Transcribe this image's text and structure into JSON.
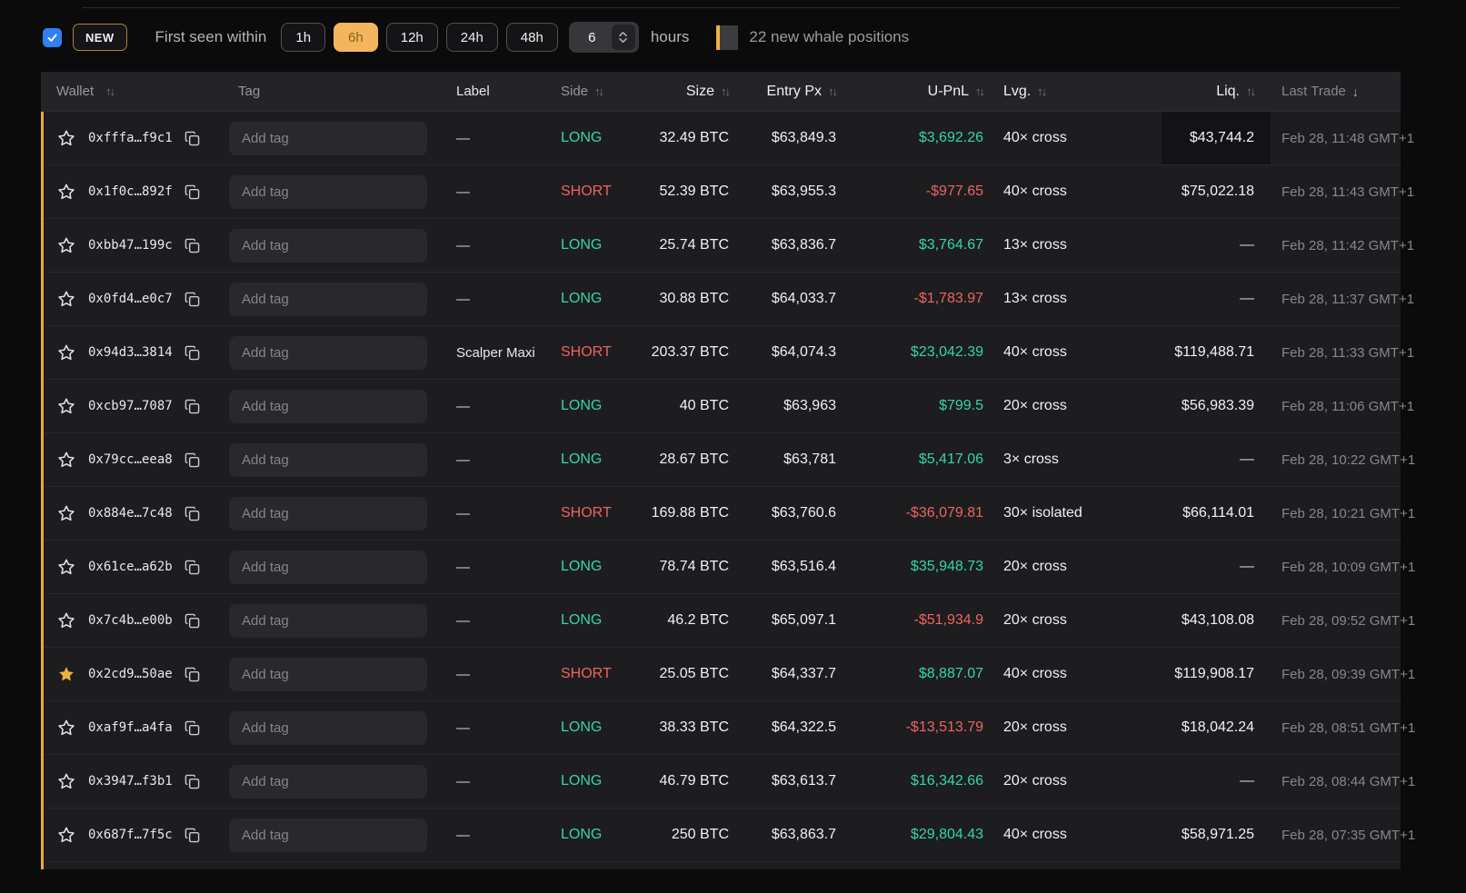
{
  "colors": {
    "accent_orange": "#f3b65c",
    "long_green": "#35d4aa",
    "short_red": "#ee6360",
    "star_yellow": "#f1af3f",
    "checkbox_blue": "#2f7ff5",
    "new_row_marker_orange": "#f0a63c"
  },
  "toolbar": {
    "checkbox_checked": true,
    "new_label": "NEW",
    "first_seen_label": "First seen within",
    "presets": [
      "1h",
      "6h",
      "12h",
      "24h",
      "48h"
    ],
    "active_preset": "6h",
    "custom_hours_value": "6",
    "hours_label": "hours",
    "legend_text": "22 new whale positions"
  },
  "table": {
    "tag_placeholder": "Add tag",
    "empty_value": "—",
    "columns": [
      {
        "key": "wallet",
        "label": "Wallet",
        "sort": "both"
      },
      {
        "key": "tag",
        "label": "Tag",
        "sort": "none"
      },
      {
        "key": "label",
        "label": "Label",
        "sort": "none"
      },
      {
        "key": "side",
        "label": "Side",
        "sort": "both"
      },
      {
        "key": "size",
        "label": "Size",
        "sort": "both"
      },
      {
        "key": "entry",
        "label": "Entry Px",
        "sort": "both"
      },
      {
        "key": "upnl",
        "label": "U-PnL",
        "sort": "both"
      },
      {
        "key": "lvg",
        "label": "Lvg.",
        "sort": "both"
      },
      {
        "key": "liq",
        "label": "Liq.",
        "sort": "both"
      },
      {
        "key": "last",
        "label": "Last Trade",
        "sort": "desc"
      }
    ],
    "rows": [
      {
        "wallet": "0xfffa…f9c1",
        "starred": false,
        "tag": "",
        "label": "—",
        "side": "LONG",
        "size": "32.49 BTC",
        "entry": "$63,849.3",
        "upnl": "$3,692.26",
        "lvg": "40× cross",
        "liq": "$43,744.2",
        "last": "Feb 28, 11:48 GMT+1",
        "liq_highlighted": true
      },
      {
        "wallet": "0x1f0c…892f",
        "starred": false,
        "tag": "",
        "label": "—",
        "side": "SHORT",
        "size": "52.39 BTC",
        "entry": "$63,955.3",
        "upnl": "-$977.65",
        "lvg": "40× cross",
        "liq": "$75,022.18",
        "last": "Feb 28, 11:43 GMT+1",
        "liq_highlighted": false
      },
      {
        "wallet": "0xbb47…199c",
        "starred": false,
        "tag": "",
        "label": "—",
        "side": "LONG",
        "size": "25.74 BTC",
        "entry": "$63,836.7",
        "upnl": "$3,764.67",
        "lvg": "13× cross",
        "liq": "—",
        "last": "Feb 28, 11:42 GMT+1",
        "liq_highlighted": false
      },
      {
        "wallet": "0x0fd4…e0c7",
        "starred": false,
        "tag": "",
        "label": "—",
        "side": "LONG",
        "size": "30.88 BTC",
        "entry": "$64,033.7",
        "upnl": "-$1,783.97",
        "lvg": "13× cross",
        "liq": "—",
        "last": "Feb 28, 11:37 GMT+1",
        "liq_highlighted": false
      },
      {
        "wallet": "0x94d3…3814",
        "starred": false,
        "tag": "",
        "label": "Scalper Maxi",
        "side": "SHORT",
        "size": "203.37 BTC",
        "entry": "$64,074.3",
        "upnl": "$23,042.39",
        "lvg": "40× cross",
        "liq": "$119,488.71",
        "last": "Feb 28, 11:33 GMT+1",
        "liq_highlighted": false
      },
      {
        "wallet": "0xcb97…7087",
        "starred": false,
        "tag": "",
        "label": "—",
        "side": "LONG",
        "size": "40 BTC",
        "entry": "$63,963",
        "upnl": "$799.5",
        "lvg": "20× cross",
        "liq": "$56,983.39",
        "last": "Feb 28, 11:06 GMT+1",
        "liq_highlighted": false
      },
      {
        "wallet": "0x79cc…eea8",
        "starred": false,
        "tag": "",
        "label": "—",
        "side": "LONG",
        "size": "28.67 BTC",
        "entry": "$63,781",
        "upnl": "$5,417.06",
        "lvg": "3× cross",
        "liq": "—",
        "last": "Feb 28, 10:22 GMT+1",
        "liq_highlighted": false
      },
      {
        "wallet": "0x884e…7c48",
        "starred": false,
        "tag": "",
        "label": "—",
        "side": "SHORT",
        "size": "169.88 BTC",
        "entry": "$63,760.6",
        "upnl": "-$36,079.81",
        "lvg": "30× isolated",
        "liq": "$66,114.01",
        "last": "Feb 28, 10:21 GMT+1",
        "liq_highlighted": false
      },
      {
        "wallet": "0x61ce…a62b",
        "starred": false,
        "tag": "",
        "label": "—",
        "side": "LONG",
        "size": "78.74 BTC",
        "entry": "$63,516.4",
        "upnl": "$35,948.73",
        "lvg": "20× cross",
        "liq": "—",
        "last": "Feb 28, 10:09 GMT+1",
        "liq_highlighted": false
      },
      {
        "wallet": "0x7c4b…e00b",
        "starred": false,
        "tag": "",
        "label": "—",
        "side": "LONG",
        "size": "46.2 BTC",
        "entry": "$65,097.1",
        "upnl": "-$51,934.9",
        "lvg": "20× cross",
        "liq": "$43,108.08",
        "last": "Feb 28, 09:52 GMT+1",
        "liq_highlighted": false
      },
      {
        "wallet": "0x2cd9…50ae",
        "starred": true,
        "tag": "",
        "label": "—",
        "side": "SHORT",
        "size": "25.05 BTC",
        "entry": "$64,337.7",
        "upnl": "$8,887.07",
        "lvg": "40× cross",
        "liq": "$119,908.17",
        "last": "Feb 28, 09:39 GMT+1",
        "liq_highlighted": false
      },
      {
        "wallet": "0xaf9f…a4fa",
        "starred": false,
        "tag": "",
        "label": "—",
        "side": "LONG",
        "size": "38.33 BTC",
        "entry": "$64,322.5",
        "upnl": "-$13,513.79",
        "lvg": "20× cross",
        "liq": "$18,042.24",
        "last": "Feb 28, 08:51 GMT+1",
        "liq_highlighted": false
      },
      {
        "wallet": "0x3947…f3b1",
        "starred": false,
        "tag": "",
        "label": "—",
        "side": "LONG",
        "size": "46.79 BTC",
        "entry": "$63,613.7",
        "upnl": "$16,342.66",
        "lvg": "20× cross",
        "liq": "—",
        "last": "Feb 28, 08:44 GMT+1",
        "liq_highlighted": false
      },
      {
        "wallet": "0x687f…7f5c",
        "starred": false,
        "tag": "",
        "label": "—",
        "side": "LONG",
        "size": "250 BTC",
        "entry": "$63,863.7",
        "upnl": "$29,804.43",
        "lvg": "40× cross",
        "liq": "$58,971.25",
        "last": "Feb 28, 07:35 GMT+1",
        "liq_highlighted": false
      }
    ]
  }
}
